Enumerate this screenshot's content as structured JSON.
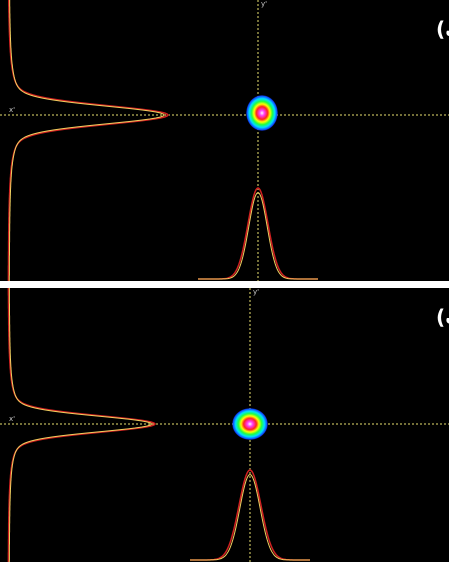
{
  "panels": [
    {
      "label": "(الف)",
      "x_axis_label": "x'",
      "y_axis_label": "y'"
    },
    {
      "label": "(ب)",
      "x_axis_label": "x'",
      "y_axis_label": "y'"
    }
  ]
}
